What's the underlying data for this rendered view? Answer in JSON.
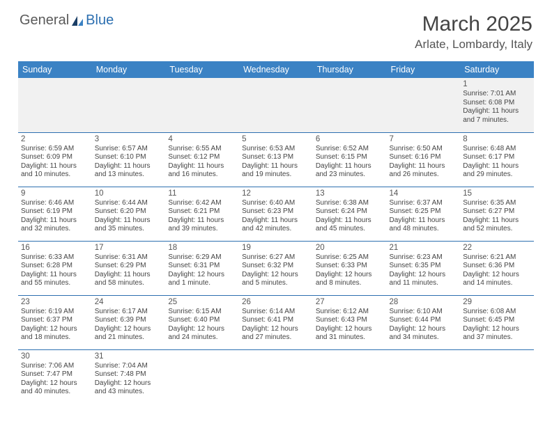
{
  "logo": {
    "part1": "General",
    "part2": "Blue"
  },
  "title": "March 2025",
  "location": "Arlate, Lombardy, Italy",
  "colors": {
    "header_bg": "#3b82c4",
    "header_text": "#ffffff",
    "border": "#2c6fb0",
    "text": "#333333",
    "title": "#444444",
    "logo_gray": "#5a5a5a",
    "logo_blue": "#2c6fb0",
    "empty_bg": "#f1f1f1"
  },
  "day_headers": [
    "Sunday",
    "Monday",
    "Tuesday",
    "Wednesday",
    "Thursday",
    "Friday",
    "Saturday"
  ],
  "weeks": [
    [
      null,
      null,
      null,
      null,
      null,
      null,
      {
        "n": "1",
        "sunrise": "Sunrise: 7:01 AM",
        "sunset": "Sunset: 6:08 PM",
        "daylight": "Daylight: 11 hours and 7 minutes."
      }
    ],
    [
      {
        "n": "2",
        "sunrise": "Sunrise: 6:59 AM",
        "sunset": "Sunset: 6:09 PM",
        "daylight": "Daylight: 11 hours and 10 minutes."
      },
      {
        "n": "3",
        "sunrise": "Sunrise: 6:57 AM",
        "sunset": "Sunset: 6:10 PM",
        "daylight": "Daylight: 11 hours and 13 minutes."
      },
      {
        "n": "4",
        "sunrise": "Sunrise: 6:55 AM",
        "sunset": "Sunset: 6:12 PM",
        "daylight": "Daylight: 11 hours and 16 minutes."
      },
      {
        "n": "5",
        "sunrise": "Sunrise: 6:53 AM",
        "sunset": "Sunset: 6:13 PM",
        "daylight": "Daylight: 11 hours and 19 minutes."
      },
      {
        "n": "6",
        "sunrise": "Sunrise: 6:52 AM",
        "sunset": "Sunset: 6:15 PM",
        "daylight": "Daylight: 11 hours and 23 minutes."
      },
      {
        "n": "7",
        "sunrise": "Sunrise: 6:50 AM",
        "sunset": "Sunset: 6:16 PM",
        "daylight": "Daylight: 11 hours and 26 minutes."
      },
      {
        "n": "8",
        "sunrise": "Sunrise: 6:48 AM",
        "sunset": "Sunset: 6:17 PM",
        "daylight": "Daylight: 11 hours and 29 minutes."
      }
    ],
    [
      {
        "n": "9",
        "sunrise": "Sunrise: 6:46 AM",
        "sunset": "Sunset: 6:19 PM",
        "daylight": "Daylight: 11 hours and 32 minutes."
      },
      {
        "n": "10",
        "sunrise": "Sunrise: 6:44 AM",
        "sunset": "Sunset: 6:20 PM",
        "daylight": "Daylight: 11 hours and 35 minutes."
      },
      {
        "n": "11",
        "sunrise": "Sunrise: 6:42 AM",
        "sunset": "Sunset: 6:21 PM",
        "daylight": "Daylight: 11 hours and 39 minutes."
      },
      {
        "n": "12",
        "sunrise": "Sunrise: 6:40 AM",
        "sunset": "Sunset: 6:23 PM",
        "daylight": "Daylight: 11 hours and 42 minutes."
      },
      {
        "n": "13",
        "sunrise": "Sunrise: 6:38 AM",
        "sunset": "Sunset: 6:24 PM",
        "daylight": "Daylight: 11 hours and 45 minutes."
      },
      {
        "n": "14",
        "sunrise": "Sunrise: 6:37 AM",
        "sunset": "Sunset: 6:25 PM",
        "daylight": "Daylight: 11 hours and 48 minutes."
      },
      {
        "n": "15",
        "sunrise": "Sunrise: 6:35 AM",
        "sunset": "Sunset: 6:27 PM",
        "daylight": "Daylight: 11 hours and 52 minutes."
      }
    ],
    [
      {
        "n": "16",
        "sunrise": "Sunrise: 6:33 AM",
        "sunset": "Sunset: 6:28 PM",
        "daylight": "Daylight: 11 hours and 55 minutes."
      },
      {
        "n": "17",
        "sunrise": "Sunrise: 6:31 AM",
        "sunset": "Sunset: 6:29 PM",
        "daylight": "Daylight: 11 hours and 58 minutes."
      },
      {
        "n": "18",
        "sunrise": "Sunrise: 6:29 AM",
        "sunset": "Sunset: 6:31 PM",
        "daylight": "Daylight: 12 hours and 1 minute."
      },
      {
        "n": "19",
        "sunrise": "Sunrise: 6:27 AM",
        "sunset": "Sunset: 6:32 PM",
        "daylight": "Daylight: 12 hours and 5 minutes."
      },
      {
        "n": "20",
        "sunrise": "Sunrise: 6:25 AM",
        "sunset": "Sunset: 6:33 PM",
        "daylight": "Daylight: 12 hours and 8 minutes."
      },
      {
        "n": "21",
        "sunrise": "Sunrise: 6:23 AM",
        "sunset": "Sunset: 6:35 PM",
        "daylight": "Daylight: 12 hours and 11 minutes."
      },
      {
        "n": "22",
        "sunrise": "Sunrise: 6:21 AM",
        "sunset": "Sunset: 6:36 PM",
        "daylight": "Daylight: 12 hours and 14 minutes."
      }
    ],
    [
      {
        "n": "23",
        "sunrise": "Sunrise: 6:19 AM",
        "sunset": "Sunset: 6:37 PM",
        "daylight": "Daylight: 12 hours and 18 minutes."
      },
      {
        "n": "24",
        "sunrise": "Sunrise: 6:17 AM",
        "sunset": "Sunset: 6:39 PM",
        "daylight": "Daylight: 12 hours and 21 minutes."
      },
      {
        "n": "25",
        "sunrise": "Sunrise: 6:15 AM",
        "sunset": "Sunset: 6:40 PM",
        "daylight": "Daylight: 12 hours and 24 minutes."
      },
      {
        "n": "26",
        "sunrise": "Sunrise: 6:14 AM",
        "sunset": "Sunset: 6:41 PM",
        "daylight": "Daylight: 12 hours and 27 minutes."
      },
      {
        "n": "27",
        "sunrise": "Sunrise: 6:12 AM",
        "sunset": "Sunset: 6:43 PM",
        "daylight": "Daylight: 12 hours and 31 minutes."
      },
      {
        "n": "28",
        "sunrise": "Sunrise: 6:10 AM",
        "sunset": "Sunset: 6:44 PM",
        "daylight": "Daylight: 12 hours and 34 minutes."
      },
      {
        "n": "29",
        "sunrise": "Sunrise: 6:08 AM",
        "sunset": "Sunset: 6:45 PM",
        "daylight": "Daylight: 12 hours and 37 minutes."
      }
    ],
    [
      {
        "n": "30",
        "sunrise": "Sunrise: 7:06 AM",
        "sunset": "Sunset: 7:47 PM",
        "daylight": "Daylight: 12 hours and 40 minutes."
      },
      {
        "n": "31",
        "sunrise": "Sunrise: 7:04 AM",
        "sunset": "Sunset: 7:48 PM",
        "daylight": "Daylight: 12 hours and 43 minutes."
      },
      null,
      null,
      null,
      null,
      null
    ]
  ]
}
